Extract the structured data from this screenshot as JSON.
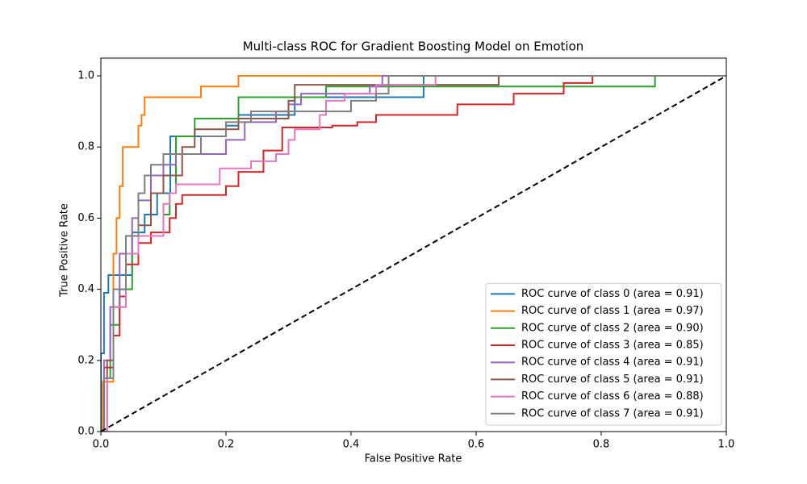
{
  "chart_data": {
    "type": "line",
    "title": "Multi-class ROC for Gradient Boosting Model on Emotion",
    "x_label": "False Positive Rate",
    "y_label": "True Positive Rate",
    "xlim": [
      0,
      1
    ],
    "ylim": [
      0,
      1.05
    ],
    "xticks": [
      {
        "value": 0,
        "label": "0.0"
      },
      {
        "value": 0.2,
        "label": "0.2"
      },
      {
        "value": 0.4,
        "label": "0.4"
      },
      {
        "value": 0.6,
        "label": "0.6"
      },
      {
        "value": 0.8,
        "label": "0.8"
      },
      {
        "value": 1,
        "label": "1.0"
      }
    ],
    "yticks": [
      {
        "value": 0,
        "label": "0.0"
      },
      {
        "value": 0.2,
        "label": "0.2"
      },
      {
        "value": 0.4,
        "label": "0.4"
      },
      {
        "value": 0.6,
        "label": "0.6"
      },
      {
        "value": 0.8,
        "label": "0.8"
      },
      {
        "value": 1,
        "label": "1.0"
      }
    ],
    "legend": "lower right",
    "diagonal": {
      "x": [
        0,
        1
      ],
      "values": [
        0,
        1
      ],
      "color": "#000000",
      "dashed": true
    },
    "series": [
      {
        "name": "ROC curve of class 0 (area = 0.91)",
        "color": "#1f77b4",
        "x": [
          0,
          0,
          0.005,
          0.005,
          0.012,
          0.012,
          0.05,
          0.05,
          0.07,
          0.07,
          0.09,
          0.09,
          0.111,
          0.111,
          0.2,
          0.2,
          0.22,
          0.22,
          0.31,
          0.31,
          0.516,
          0.516,
          1
        ],
        "values": [
          0,
          0.22,
          0.22,
          0.39,
          0.39,
          0.44,
          0.44,
          0.56,
          0.56,
          0.61,
          0.61,
          0.67,
          0.67,
          0.83,
          0.83,
          0.86,
          0.86,
          0.89,
          0.89,
          0.94,
          0.94,
          1,
          1
        ]
      },
      {
        "name": "ROC curve of class 1 (area = 0.97)",
        "color": "#ff7f0e",
        "x": [
          0,
          0.003,
          0.003,
          0.02,
          0.02,
          0.025,
          0.025,
          0.03,
          0.03,
          0.035,
          0.035,
          0.06,
          0.06,
          0.065,
          0.065,
          0.07,
          0.07,
          0.16,
          0.16,
          0.22,
          0.22,
          1
        ],
        "values": [
          0,
          0,
          0.14,
          0.14,
          0.5,
          0.5,
          0.6,
          0.6,
          0.69,
          0.69,
          0.8,
          0.8,
          0.86,
          0.86,
          0.89,
          0.89,
          0.94,
          0.94,
          0.97,
          0.97,
          1,
          1
        ]
      },
      {
        "name": "ROC curve of class 2 (area = 0.90)",
        "color": "#2ca02c",
        "x": [
          0,
          0.005,
          0.005,
          0.015,
          0.015,
          0.03,
          0.03,
          0.05,
          0.05,
          0.06,
          0.06,
          0.1,
          0.1,
          0.11,
          0.11,
          0.12,
          0.12,
          0.15,
          0.15,
          0.22,
          0.22,
          0.36,
          0.36,
          0.886,
          0.886,
          1
        ],
        "values": [
          0,
          0,
          0.15,
          0.15,
          0.3,
          0.3,
          0.4,
          0.4,
          0.5,
          0.5,
          0.55,
          0.55,
          0.61,
          0.61,
          0.67,
          0.67,
          0.83,
          0.83,
          0.88,
          0.88,
          0.94,
          0.94,
          0.97,
          0.97,
          1,
          1
        ]
      },
      {
        "name": "ROC curve of class 3 (area = 0.85)",
        "color": "#d62728",
        "x": [
          0,
          0.005,
          0.005,
          0.02,
          0.02,
          0.03,
          0.03,
          0.04,
          0.04,
          0.06,
          0.06,
          0.08,
          0.08,
          0.11,
          0.11,
          0.12,
          0.12,
          0.13,
          0.13,
          0.2,
          0.2,
          0.22,
          0.22,
          0.26,
          0.26,
          0.29,
          0.29,
          0.37,
          0.37,
          0.41,
          0.41,
          0.44,
          0.44,
          0.57,
          0.57,
          0.66,
          0.66,
          0.74,
          0.74,
          0.786,
          0.786,
          1
        ],
        "values": [
          0,
          0,
          0.18,
          0.18,
          0.27,
          0.27,
          0.38,
          0.38,
          0.47,
          0.47,
          0.53,
          0.53,
          0.56,
          0.56,
          0.6,
          0.6,
          0.64,
          0.64,
          0.665,
          0.665,
          0.69,
          0.69,
          0.73,
          0.73,
          0.79,
          0.79,
          0.855,
          0.855,
          0.86,
          0.86,
          0.87,
          0.87,
          0.89,
          0.89,
          0.92,
          0.92,
          0.95,
          0.95,
          0.98,
          0.98,
          1,
          1
        ]
      },
      {
        "name": "ROC curve of class 4 (area = 0.91)",
        "color": "#9467bd",
        "x": [
          0,
          0.005,
          0.005,
          0.015,
          0.015,
          0.03,
          0.03,
          0.05,
          0.05,
          0.06,
          0.06,
          0.08,
          0.08,
          0.1,
          0.1,
          0.12,
          0.12,
          0.2,
          0.2,
          0.23,
          0.23,
          0.28,
          0.28,
          0.3,
          0.3,
          0.32,
          0.32,
          0.43,
          0.43,
          0.45,
          0.45,
          1
        ],
        "values": [
          0,
          0,
          0.2,
          0.2,
          0.35,
          0.35,
          0.5,
          0.5,
          0.6,
          0.6,
          0.65,
          0.65,
          0.72,
          0.72,
          0.75,
          0.75,
          0.78,
          0.78,
          0.82,
          0.82,
          0.87,
          0.87,
          0.9,
          0.9,
          0.92,
          0.92,
          0.95,
          0.95,
          0.97,
          0.97,
          1,
          1
        ]
      },
      {
        "name": "ROC curve of class 5 (area = 0.91)",
        "color": "#8c564b",
        "x": [
          0,
          0.01,
          0.01,
          0.02,
          0.02,
          0.04,
          0.04,
          0.06,
          0.06,
          0.08,
          0.08,
          0.1,
          0.1,
          0.13,
          0.13,
          0.15,
          0.15,
          0.22,
          0.22,
          0.3,
          0.3,
          0.31,
          0.31,
          0.636,
          0.636,
          1
        ],
        "values": [
          0,
          0,
          0.2,
          0.2,
          0.35,
          0.35,
          0.5,
          0.5,
          0.58,
          0.58,
          0.67,
          0.67,
          0.72,
          0.72,
          0.8,
          0.8,
          0.85,
          0.85,
          0.88,
          0.88,
          0.93,
          0.93,
          0.975,
          0.975,
          1,
          1
        ]
      },
      {
        "name": "ROC curve of class 6 (area = 0.88)",
        "color": "#e377c2",
        "x": [
          0,
          0.01,
          0.01,
          0.02,
          0.02,
          0.04,
          0.04,
          0.06,
          0.06,
          0.1,
          0.1,
          0.11,
          0.11,
          0.12,
          0.12,
          0.19,
          0.19,
          0.24,
          0.24,
          0.28,
          0.28,
          0.3,
          0.3,
          0.31,
          0.31,
          0.35,
          0.35,
          0.36,
          0.36,
          0.39,
          0.39,
          0.44,
          0.44,
          0.535,
          0.535,
          1
        ],
        "values": [
          0,
          0,
          0.15,
          0.15,
          0.35,
          0.35,
          0.5,
          0.5,
          0.55,
          0.55,
          0.64,
          0.64,
          0.67,
          0.67,
          0.695,
          0.695,
          0.74,
          0.74,
          0.76,
          0.76,
          0.78,
          0.78,
          0.82,
          0.82,
          0.85,
          0.85,
          0.89,
          0.89,
          0.93,
          0.93,
          0.95,
          0.95,
          0.975,
          0.975,
          1,
          1
        ]
      },
      {
        "name": "ROC curve of class 7 (area = 0.91)",
        "color": "#7f7f7f",
        "x": [
          0,
          0.005,
          0.005,
          0.02,
          0.02,
          0.04,
          0.04,
          0.06,
          0.06,
          0.07,
          0.07,
          0.08,
          0.08,
          0.1,
          0.1,
          0.16,
          0.16,
          0.2,
          0.2,
          0.24,
          0.24,
          0.4,
          0.4,
          0.44,
          0.44,
          0.46,
          0.46,
          1
        ],
        "values": [
          0,
          0,
          0.15,
          0.15,
          0.4,
          0.4,
          0.55,
          0.55,
          0.67,
          0.67,
          0.72,
          0.72,
          0.75,
          0.75,
          0.78,
          0.78,
          0.83,
          0.83,
          0.87,
          0.87,
          0.9,
          0.9,
          0.93,
          0.93,
          0.95,
          0.95,
          1,
          1
        ]
      }
    ]
  }
}
